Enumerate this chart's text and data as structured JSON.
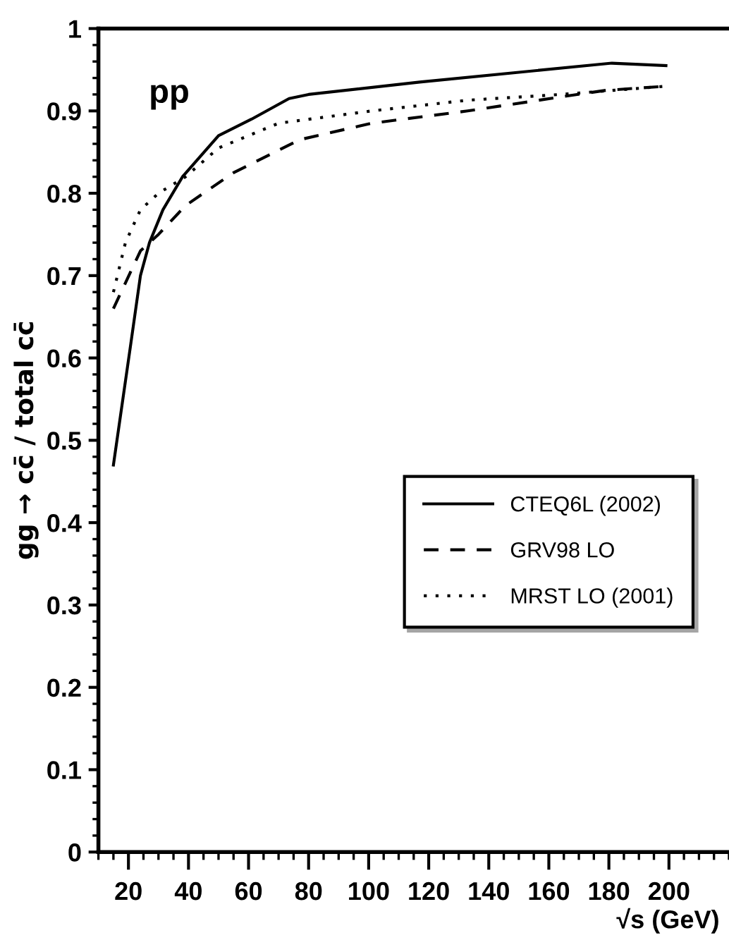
{
  "chart_data": {
    "type": "line",
    "xlabel": "√s (GeV)",
    "ylabel": "gg → cc̄ / total cc̄",
    "annotations": [
      "pp"
    ],
    "xlim": [
      10,
      220
    ],
    "xticks": [
      20,
      40,
      60,
      80,
      100,
      120,
      140,
      160,
      180,
      200
    ],
    "ylim": [
      0,
      1
    ],
    "yticks": [
      0,
      0.1,
      0.2,
      0.3,
      0.4,
      0.5,
      0.6,
      0.7,
      0.8,
      0.9,
      1
    ],
    "grid": false,
    "legend": "lower right",
    "marker": "none",
    "series": [
      {
        "name": "CTEQ6L (2002)",
        "color": "#000000",
        "line_style": "solid",
        "x": [
          15,
          20.5,
          24,
          27,
          31.5,
          38,
          50,
          61,
          73.5,
          80,
          117,
          178,
          181,
          199
        ],
        "values": [
          0.47,
          0.61,
          0.7,
          0.74,
          0.78,
          0.82,
          0.87,
          0.89,
          0.915,
          0.92,
          0.935,
          0.957,
          0.958,
          0.955
        ]
      },
      {
        "name": "GRV98 LO",
        "color": "#000000",
        "line_style": "dashed",
        "x": [
          15,
          24,
          30,
          39,
          55,
          77,
          101,
          133,
          164,
          179,
          199
        ],
        "values": [
          0.66,
          0.73,
          0.75,
          0.785,
          0.825,
          0.865,
          0.885,
          0.9,
          0.917,
          0.925,
          0.93
        ]
      },
      {
        "name": "MRST LO (2001)",
        "color": "#000000",
        "line_style": "dotted",
        "x": [
          15,
          19,
          24,
          30,
          39,
          50,
          70,
          101,
          133,
          164,
          199
        ],
        "values": [
          0.68,
          0.74,
          0.78,
          0.8,
          0.82,
          0.855,
          0.885,
          0.9,
          0.913,
          0.92,
          0.93
        ]
      }
    ]
  }
}
